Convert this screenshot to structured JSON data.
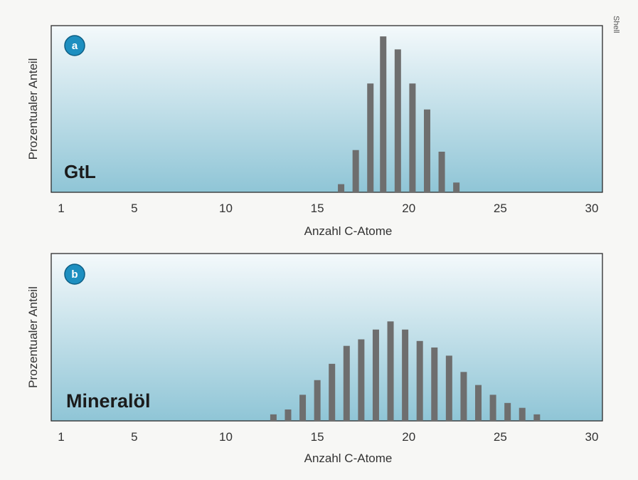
{
  "credit": "Shell",
  "colors": {
    "bar": "#6e6e6e",
    "badge": "#1d8fc0",
    "panel_top": "#f4f9fb",
    "panel_bottom": "#8fc5d6",
    "frame": "#2b2b2b"
  },
  "chart_data": [
    {
      "type": "bar",
      "badge": "a",
      "panel_label": "GtL",
      "xlabel": "Anzahl C-Atome",
      "ylabel": "Prozentualer Anteil",
      "xlim": [
        1,
        30
      ],
      "xticks": [
        1,
        5,
        10,
        15,
        20,
        25,
        30
      ],
      "ylim": [
        0,
        100
      ],
      "grid": false,
      "x": [
        16.3,
        17.1,
        17.9,
        18.6,
        19.4,
        20.2,
        21.0,
        21.8,
        22.6
      ],
      "values": [
        5,
        26,
        67,
        96,
        88,
        67,
        51,
        25,
        6
      ]
    },
    {
      "type": "bar",
      "badge": "b",
      "panel_label": "Mineralöl",
      "xlabel": "Anzahl C-Atome",
      "ylabel": "Prozentualer Anteil",
      "xlim": [
        1,
        30
      ],
      "xticks": [
        1,
        5,
        10,
        15,
        20,
        25,
        30
      ],
      "ylim": [
        0,
        100
      ],
      "grid": false,
      "x": [
        12.6,
        13.4,
        14.2,
        15.0,
        15.8,
        16.6,
        17.4,
        18.2,
        19.0,
        19.8,
        20.6,
        21.4,
        22.2,
        23.0,
        23.8,
        24.6,
        25.4,
        26.2,
        27.0
      ],
      "values": [
        4,
        7,
        16,
        25,
        35,
        46,
        50,
        56,
        61,
        56,
        49,
        45,
        40,
        30,
        22,
        16,
        11,
        8,
        4
      ]
    }
  ]
}
